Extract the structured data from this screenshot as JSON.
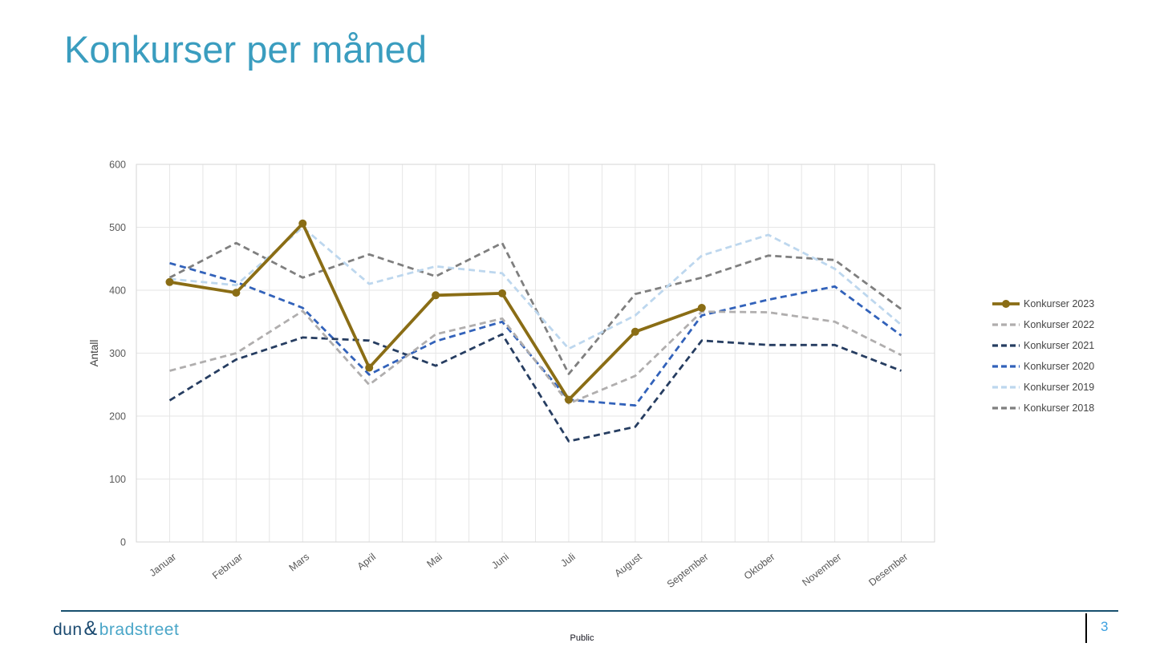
{
  "slide": {
    "title": "Konkurser per måned",
    "footer": {
      "logo_dun": "dun",
      "logo_amp": "&",
      "logo_bradstreet": "bradstreet",
      "classification": "Public",
      "page_number": "3"
    }
  },
  "chart_data": {
    "type": "line",
    "title": "Konkurser per måned",
    "xlabel": "",
    "ylabel": "Antall",
    "ylim": [
      0,
      600
    ],
    "ytick_interval": 100,
    "grid": true,
    "legend_position": "right",
    "categories": [
      "Januar",
      "Februar",
      "Mars",
      "April",
      "Mai",
      "Juni",
      "Juli",
      "August",
      "September",
      "Oktober",
      "November",
      "Desember"
    ],
    "series": [
      {
        "name": "Konkurser 2023",
        "color": "#8a6d15",
        "style": "solid",
        "marker": true,
        "values": [
          413,
          396,
          506,
          277,
          392,
          395,
          226,
          334,
          372
        ]
      },
      {
        "name": "Konkurser 2022",
        "color": "#b0aeae",
        "style": "dashed",
        "marker": false,
        "values": [
          272,
          300,
          367,
          250,
          330,
          355,
          220,
          264,
          366,
          365,
          350,
          297
        ]
      },
      {
        "name": "Konkurser 2021",
        "color": "#263d61",
        "style": "dashed",
        "marker": false,
        "values": [
          225,
          290,
          325,
          320,
          280,
          330,
          160,
          183,
          320,
          313,
          313,
          272
        ]
      },
      {
        "name": "Konkurser 2020",
        "color": "#3262ba",
        "style": "dashed",
        "marker": false,
        "values": [
          443,
          413,
          372,
          266,
          319,
          350,
          226,
          217,
          360,
          385,
          406,
          328
        ]
      },
      {
        "name": "Konkurser 2019",
        "color": "#bdd7ee",
        "style": "dashed",
        "marker": false,
        "values": [
          418,
          408,
          500,
          410,
          438,
          427,
          307,
          360,
          455,
          488,
          434,
          345
        ]
      },
      {
        "name": "Konkurser 2018",
        "color": "#7f7f7f",
        "style": "dashed",
        "marker": false,
        "values": [
          420,
          475,
          420,
          457,
          422,
          475,
          267,
          394,
          420,
          455,
          448,
          370
        ]
      }
    ],
    "axis_colors": {
      "tick_label": "#595959",
      "axis_title": "#404040",
      "gridline": "#e6e6e6",
      "plot_border": "#d6d6d6"
    }
  }
}
